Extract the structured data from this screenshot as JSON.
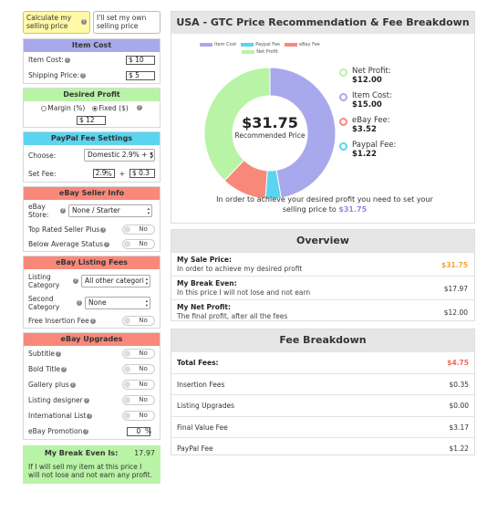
{
  "mode": {
    "calc_label": "Calculate my selling price",
    "set_label": "I'll set my own selling price",
    "active": "calc"
  },
  "item_cost": {
    "header": "Item Cost",
    "item_cost_label": "Item Cost:",
    "item_cost_value": "$ 10",
    "shipping_label": "Shipping Price:",
    "shipping_value": "$ 5"
  },
  "desired_profit": {
    "header": "Desired Profit",
    "margin_label": "Margin (%)",
    "fixed_label": "Fixed ($)",
    "selected": "fixed",
    "value": "$ 12"
  },
  "paypal": {
    "header": "PayPal Fee Settings",
    "choose_label": "Choose:",
    "choose_value": "Domestic 2.9% + $.",
    "set_fee_label": "Set Fee:",
    "percent_value": "2.9",
    "percent_sign": "%",
    "plus": "+",
    "fixed_value": "$ 0.3"
  },
  "seller_info": {
    "header": "eBay Seller Info",
    "store_label": "eBay Store:",
    "store_value": "None / Starter",
    "top_rated_label": "Top Rated Seller Plus",
    "top_rated_value": "No",
    "below_avg_label": "Below Average Status",
    "below_avg_value": "No"
  },
  "listing_fees": {
    "header": "eBay Listing Fees",
    "category_label": "Listing Category",
    "category_value": "All other categori",
    "second_label": "Second Category",
    "second_value": "None",
    "free_insertion_label": "Free Insertion Fee",
    "free_insertion_value": "No"
  },
  "upgrades": {
    "header": "eBay Upgrades",
    "items": [
      {
        "label": "Subtitle",
        "value": "No"
      },
      {
        "label": "Bold Title",
        "value": "No"
      },
      {
        "label": "Gallery plus",
        "value": "No"
      },
      {
        "label": "Listing designer",
        "value": "No"
      },
      {
        "label": "International List",
        "value": "No"
      }
    ],
    "promotion_label": "eBay Promotion",
    "promotion_value": "0",
    "promotion_unit": "%"
  },
  "break_even_box": {
    "title": "My Break Even Is:",
    "value": "17.97",
    "text": "If I will sell my item at this price I will not lose and not earn any profit."
  },
  "chart_card": {
    "title": "USA - GTC Price Recommendation & Fee Breakdown",
    "center_value": "$31.75",
    "center_label": "Recommended Price",
    "rec_text": "In order to achieve your desired profit you need to set your selling price to",
    "rec_price": "$31.75",
    "side_legend": [
      {
        "label": "Net Profit:",
        "value": "$12.00",
        "color": "#b9f3a6"
      },
      {
        "label": "Item Cost:",
        "value": "$15.00",
        "color": "#a8a8ec"
      },
      {
        "label": "eBay Fee:",
        "value": "$3.52",
        "color": "#f8897a"
      },
      {
        "label": "Paypal Fee:",
        "value": "$1.22",
        "color": "#5ad4f0"
      }
    ]
  },
  "chart_data": {
    "type": "pie",
    "donut": true,
    "categories": [
      "Item Cost",
      "Paypal Fee",
      "eBay Fee",
      "Net Profit"
    ],
    "values": [
      15.0,
      1.22,
      3.52,
      12.0
    ],
    "colors": [
      "#a8a8ec",
      "#5ad4f0",
      "#f8897a",
      "#b9f3a6"
    ],
    "legend": "top"
  },
  "overview": {
    "title": "Overview",
    "rows": [
      {
        "title": "My Sale Price:",
        "sub": "In order to achieve my desired profit",
        "value": "$31.75"
      },
      {
        "title": "My Break Even:",
        "sub": "In this price I will not lose and not earn",
        "value": "$17.97"
      },
      {
        "title": "My Net Profit:",
        "sub": "The final profit, after all the fees",
        "value": "$12.00"
      }
    ]
  },
  "fees": {
    "title": "Fee Breakdown",
    "rows": [
      {
        "label": "Total Fees:",
        "value": "$4.75"
      },
      {
        "label": "Insertion Fees",
        "value": "$0.35"
      },
      {
        "label": "Listing Upgrades",
        "value": "$0.00"
      },
      {
        "label": "Final Value Fee",
        "value": "$3.17"
      },
      {
        "label": "PayPal Fee",
        "value": "$1.22"
      }
    ]
  }
}
